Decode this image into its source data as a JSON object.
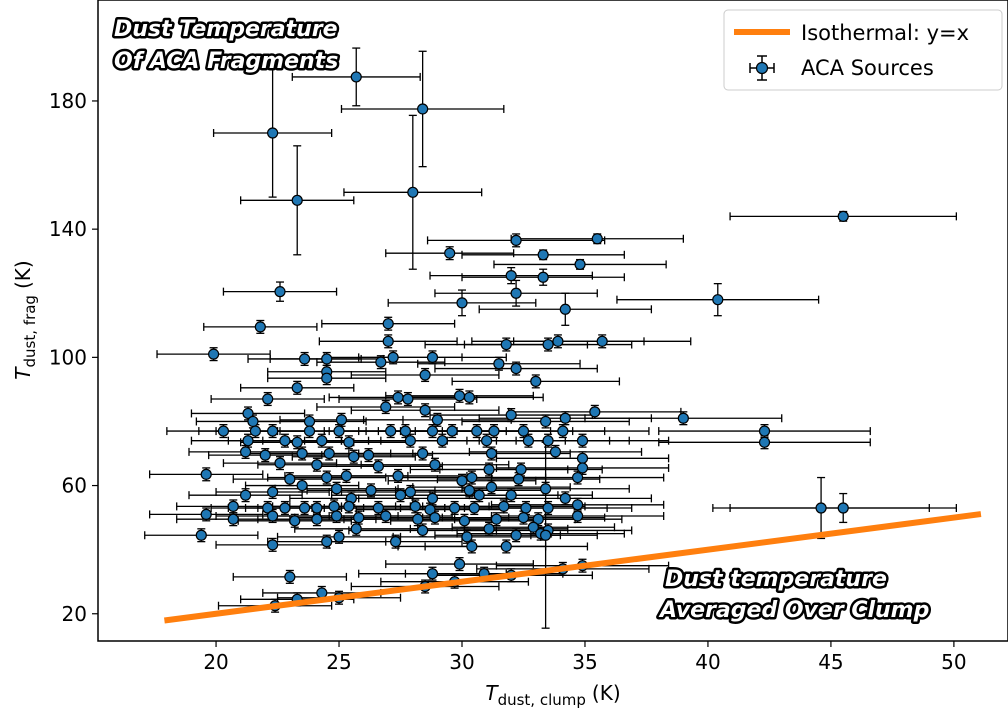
{
  "chart_data": {
    "type": "scatter",
    "xlabel": "T",
    "xlabel_sub": "dust, clump",
    "xlabel_unit": "(K)",
    "ylabel": "T",
    "ylabel_sub": "dust, frag",
    "ylabel_unit": "(K)",
    "xlim": [
      15.2,
      52.2
    ],
    "ylim": [
      11.5,
      211.5
    ],
    "xticks": [
      20,
      25,
      30,
      35,
      40,
      45,
      50
    ],
    "yticks": [
      20,
      60,
      100,
      140,
      180
    ],
    "grid": false,
    "legend_position": "top-right",
    "legend": {
      "line_label": "Isothermal: y=x",
      "points_label": "ACA Sources"
    },
    "annotations": {
      "top_left": [
        "Dust Temperature",
        "Of ACA Fragments"
      ],
      "bottom_right": [
        "Dust temperature",
        "Averaged Over Clump"
      ]
    },
    "line": {
      "name": "Isothermal: y=x",
      "color": "#ff7f0e",
      "x": [
        17.9,
        51.1
      ],
      "y": [
        17.9,
        51.1
      ]
    },
    "points_color": "#1f77b4",
    "series": [
      {
        "name": "ACA Sources",
        "points": [
          [
            25.7,
            187.5,
            2.6,
            9
          ],
          [
            28.4,
            177.5,
            3.3,
            18
          ],
          [
            22.3,
            170,
            2.4,
            20
          ],
          [
            23.3,
            149,
            2.3,
            17
          ],
          [
            28,
            151.5,
            2.8,
            24
          ],
          [
            45.5,
            144,
            4.6,
            1.5
          ],
          [
            32.2,
            136.5,
            3.6,
            2
          ],
          [
            35.5,
            137,
            3.5,
            1.5
          ],
          [
            29.5,
            132.5,
            2.6,
            2
          ],
          [
            33.3,
            132,
            3.3,
            1.5
          ],
          [
            34.8,
            129,
            3.5,
            1.5
          ],
          [
            32,
            125.5,
            3.3,
            2.5
          ],
          [
            33.3,
            125,
            3.3,
            2.5
          ],
          [
            22.6,
            120.5,
            2.3,
            3
          ],
          [
            32.2,
            120,
            3.3,
            4
          ],
          [
            30,
            117,
            3,
            4
          ],
          [
            40.4,
            118,
            4.1,
            5
          ],
          [
            34.2,
            115,
            3.5,
            5
          ],
          [
            21.8,
            109.5,
            2.3,
            2
          ],
          [
            27,
            110.5,
            2.7,
            2
          ],
          [
            27,
            105,
            2.8,
            2
          ],
          [
            31.8,
            104,
            3.3,
            2
          ],
          [
            33.5,
            104,
            3.4,
            2
          ],
          [
            33.9,
            105,
            3.5,
            2
          ],
          [
            35.7,
            105,
            3.6,
            2
          ],
          [
            19.9,
            101,
            2.3,
            2
          ],
          [
            23.6,
            99.5,
            2.3,
            2
          ],
          [
            24.5,
            99.5,
            2.3,
            2
          ],
          [
            26.7,
            98.5,
            2.6,
            2
          ],
          [
            27.2,
            100,
            2.8,
            2
          ],
          [
            28.8,
            100,
            3,
            2
          ],
          [
            31.5,
            98,
            3.3,
            2
          ],
          [
            32.2,
            96.5,
            3.3,
            2
          ],
          [
            24.5,
            95.5,
            2.4,
            2
          ],
          [
            24.5,
            93.5,
            2.4,
            2
          ],
          [
            28.5,
            94.5,
            3,
            2
          ],
          [
            33,
            92.5,
            3.4,
            2
          ],
          [
            23.3,
            90.5,
            2.3,
            2
          ],
          [
            22.1,
            87,
            2.3,
            2
          ],
          [
            27.4,
            87.5,
            2.8,
            2
          ],
          [
            27.8,
            87,
            2.8,
            2
          ],
          [
            29.9,
            88,
            3,
            2
          ],
          [
            30.3,
            87.5,
            3,
            2
          ],
          [
            26.9,
            84.5,
            2.8,
            2
          ],
          [
            28.5,
            83.5,
            3,
            2
          ],
          [
            21.3,
            82.5,
            2.3,
            2
          ],
          [
            35.4,
            83,
            3.5,
            2
          ],
          [
            39,
            81,
            4,
            2
          ],
          [
            32,
            82,
            3.3,
            2
          ],
          [
            21.5,
            80,
            2.3,
            2
          ],
          [
            23.8,
            80,
            2.3,
            2
          ],
          [
            25.1,
            80.5,
            2.5,
            2
          ],
          [
            29,
            80.5,
            3,
            2
          ],
          [
            33.4,
            80,
            3.4,
            2
          ],
          [
            34.2,
            81,
            3.5,
            2
          ],
          [
            20.3,
            77,
            2.3,
            2
          ],
          [
            21.6,
            77,
            2.3,
            2
          ],
          [
            22.3,
            77,
            2.3,
            2
          ],
          [
            23.8,
            77,
            2.3,
            2
          ],
          [
            25,
            77,
            2.5,
            2
          ],
          [
            27.1,
            77,
            2.7,
            2
          ],
          [
            27.7,
            77,
            2.8,
            2
          ],
          [
            28.8,
            77,
            3,
            2
          ],
          [
            29.6,
            77,
            3,
            2
          ],
          [
            30.6,
            77,
            3,
            2
          ],
          [
            31.3,
            77,
            3.2,
            2
          ],
          [
            32.5,
            77,
            3.3,
            2
          ],
          [
            34.1,
            77,
            3.5,
            2
          ],
          [
            42.3,
            77,
            4.3,
            2
          ],
          [
            42.3,
            73.5,
            4.3,
            2
          ],
          [
            21.3,
            74,
            2.3,
            2
          ],
          [
            22.8,
            74,
            2.3,
            2
          ],
          [
            23.3,
            73.5,
            2.3,
            2
          ],
          [
            24.3,
            74,
            2.4,
            2
          ],
          [
            25.4,
            73.5,
            2.5,
            2
          ],
          [
            27.9,
            74,
            2.8,
            2
          ],
          [
            29.2,
            74,
            3,
            2
          ],
          [
            31,
            74,
            3.2,
            2
          ],
          [
            32.7,
            74,
            3.3,
            2
          ],
          [
            33.5,
            74,
            3.3,
            2
          ],
          [
            34.9,
            74,
            3.5,
            2
          ],
          [
            21.2,
            70.5,
            2.3,
            2
          ],
          [
            22,
            69.5,
            2.3,
            2
          ],
          [
            23.5,
            70,
            2.3,
            2
          ],
          [
            24.6,
            70,
            2.5,
            2
          ],
          [
            25.6,
            69,
            2.5,
            2
          ],
          [
            26.2,
            69.5,
            2.6,
            2
          ],
          [
            28.4,
            70,
            3,
            2
          ],
          [
            31.2,
            70,
            3.2,
            2
          ],
          [
            33.8,
            70.5,
            3.5,
            2
          ],
          [
            34.9,
            68.5,
            3.5,
            2
          ],
          [
            22.6,
            67,
            2.3,
            2
          ],
          [
            24.1,
            66.5,
            2.4,
            2
          ],
          [
            26.6,
            66,
            2.6,
            2
          ],
          [
            28.9,
            66.5,
            3,
            2
          ],
          [
            31.1,
            65,
            3.2,
            2
          ],
          [
            32.4,
            65,
            3.3,
            2
          ],
          [
            34.9,
            65.5,
            3.5,
            2
          ],
          [
            19.6,
            63.5,
            2.3,
            2
          ],
          [
            23,
            62,
            2.3,
            2
          ],
          [
            24.5,
            62.5,
            2.4,
            2
          ],
          [
            25.3,
            63,
            2.5,
            2
          ],
          [
            27.4,
            63,
            2.8,
            2
          ],
          [
            30,
            61.5,
            3,
            2
          ],
          [
            30.4,
            62.5,
            3,
            2
          ],
          [
            32.3,
            62,
            3.3,
            2
          ],
          [
            34.7,
            62.5,
            3.5,
            2
          ],
          [
            22.3,
            58,
            2.3,
            2
          ],
          [
            23.5,
            60,
            2.3,
            2
          ],
          [
            24.9,
            59,
            2.5,
            2
          ],
          [
            26.3,
            58.5,
            2.6,
            2
          ],
          [
            27.9,
            58,
            2.8,
            2
          ],
          [
            30.3,
            58.5,
            3,
            2
          ],
          [
            31.2,
            59.5,
            3.2,
            2
          ],
          [
            33.4,
            59,
            3.4,
            2
          ],
          [
            21.2,
            57,
            2.3,
            2
          ],
          [
            25.5,
            56,
            2.5,
            2
          ],
          [
            27.5,
            57,
            2.8,
            2
          ],
          [
            28.8,
            56,
            3,
            2
          ],
          [
            30.7,
            57,
            3.2,
            2
          ],
          [
            32,
            57,
            3.3,
            2
          ],
          [
            34.2,
            56,
            3.5,
            2
          ],
          [
            20.7,
            53.5,
            2.3,
            2
          ],
          [
            22.1,
            53,
            2.3,
            2
          ],
          [
            22.8,
            53,
            2.3,
            2
          ],
          [
            23.6,
            53,
            2.4,
            2
          ],
          [
            24.1,
            53,
            2.4,
            2
          ],
          [
            24.8,
            53.5,
            2.5,
            2
          ],
          [
            25.4,
            53.5,
            2.5,
            2
          ],
          [
            26.6,
            53,
            2.7,
            2
          ],
          [
            28.1,
            53.5,
            3,
            2
          ],
          [
            28.7,
            52.5,
            3,
            2
          ],
          [
            29.7,
            53,
            3,
            2
          ],
          [
            30.5,
            53,
            3,
            2
          ],
          [
            31.7,
            53.5,
            3.3,
            2
          ],
          [
            32.6,
            53,
            3.3,
            2
          ],
          [
            33.5,
            53,
            3.4,
            2
          ],
          [
            34.7,
            54,
            3.5,
            2
          ],
          [
            44.6,
            53,
            4.4,
            9.5
          ],
          [
            45.5,
            53,
            4.6,
            4.5
          ],
          [
            19.6,
            51,
            2.3,
            2
          ],
          [
            20.7,
            49.5,
            2.3,
            2
          ],
          [
            22.3,
            50.5,
            2.3,
            2
          ],
          [
            23.2,
            49,
            2.3,
            2
          ],
          [
            24.1,
            49.5,
            2.4,
            2
          ],
          [
            24.9,
            50.5,
            2.5,
            2
          ],
          [
            25.8,
            50,
            2.6,
            2
          ],
          [
            26.9,
            50.5,
            2.7,
            2
          ],
          [
            28.2,
            49.5,
            3,
            2
          ],
          [
            28.9,
            50,
            3,
            2
          ],
          [
            30.1,
            49,
            3,
            2
          ],
          [
            31.4,
            49.5,
            3.2,
            2
          ],
          [
            32.5,
            50,
            3.3,
            2
          ],
          [
            33.1,
            49.5,
            3.4,
            2
          ],
          [
            34.7,
            50.5,
            3.5,
            2
          ],
          [
            25.7,
            46.5,
            2.5,
            2
          ],
          [
            28.4,
            46,
            3,
            2
          ],
          [
            31.1,
            46.5,
            3.2,
            2
          ],
          [
            32.9,
            47,
            3.3,
            2
          ],
          [
            33.5,
            46,
            3.4,
            2
          ],
          [
            19.4,
            44.5,
            2.3,
            2
          ],
          [
            25,
            44,
            2.5,
            2
          ],
          [
            30.2,
            44,
            3,
            2
          ],
          [
            32.2,
            44.5,
            3.3,
            2
          ],
          [
            33.2,
            45,
            3.4,
            2
          ],
          [
            22.3,
            41.5,
            2.3,
            2
          ],
          [
            24.5,
            42.5,
            2.4,
            2
          ],
          [
            27.3,
            42.5,
            2.7,
            2
          ],
          [
            30.4,
            41,
            3,
            2
          ],
          [
            31.8,
            41,
            3.3,
            2
          ],
          [
            29.9,
            35.5,
            3,
            2
          ],
          [
            34.1,
            34,
            3.5,
            2
          ],
          [
            34.9,
            35,
            3.5,
            2
          ],
          [
            23,
            31.5,
            2.3,
            2
          ],
          [
            28.8,
            32.5,
            3,
            2
          ],
          [
            30.9,
            32.5,
            3.2,
            2
          ],
          [
            32,
            32,
            3.3,
            2
          ],
          [
            29.7,
            30,
            3,
            2
          ],
          [
            28.5,
            28.5,
            3,
            2
          ],
          [
            24.3,
            26.5,
            2.4,
            2
          ],
          [
            23.3,
            24.5,
            2.3,
            2
          ],
          [
            25,
            25,
            2.5,
            2
          ],
          [
            22.4,
            22.5,
            2.3,
            2
          ],
          [
            33.4,
            44.5,
            0.6,
            29
          ]
        ]
      }
    ]
  }
}
